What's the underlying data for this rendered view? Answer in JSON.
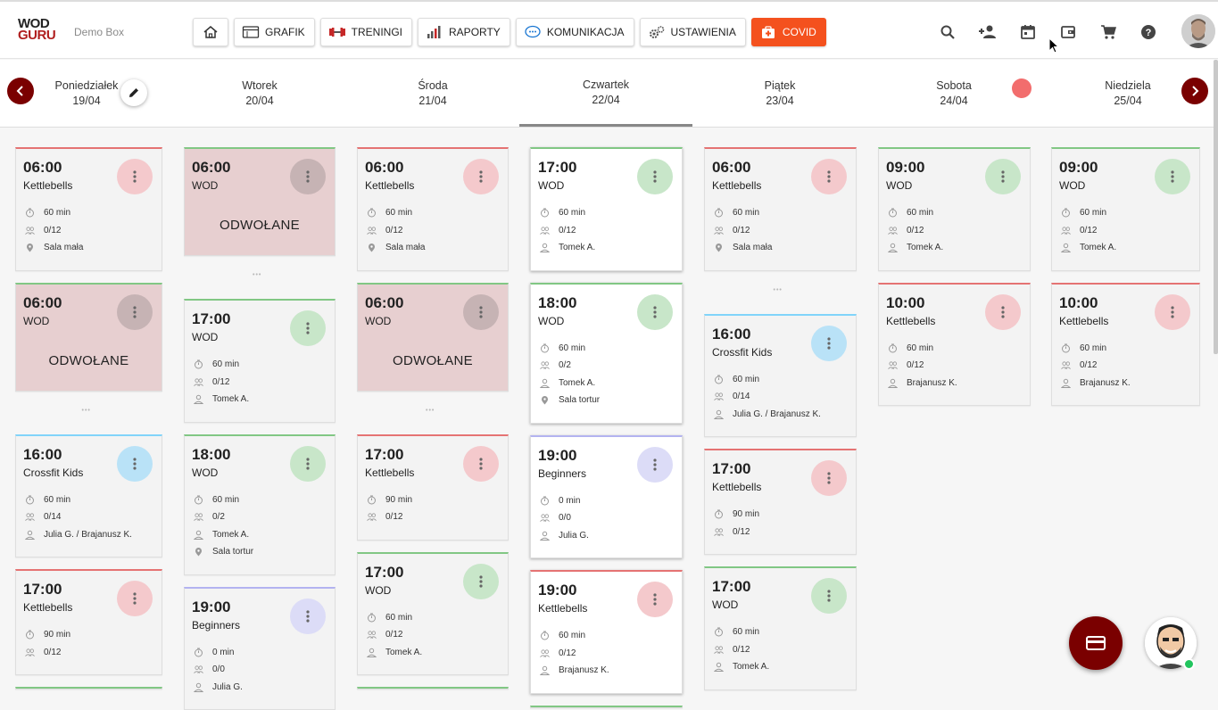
{
  "header": {
    "logo_line1": "WOD",
    "logo_line2": "GURU",
    "box_name": "Demo Box",
    "nav": [
      {
        "label": "GRAFIK",
        "icon": "calendar-board-icon"
      },
      {
        "label": "TRENINGI",
        "icon": "dumbbell-icon"
      },
      {
        "label": "RAPORTY",
        "icon": "bar-chart-icon"
      },
      {
        "label": "KOMUNIKACJA",
        "icon": "chat-icon"
      },
      {
        "label": "USTAWIENIA",
        "icon": "gears-icon"
      }
    ],
    "covid_label": "COVID",
    "icons": [
      "search-icon",
      "add-user-icon",
      "calendar-icon",
      "wallet-icon",
      "cart-icon",
      "help-icon"
    ]
  },
  "days": [
    {
      "name": "Poniedziałek",
      "date": "19/04"
    },
    {
      "name": "Wtorek",
      "date": "20/04"
    },
    {
      "name": "Środa",
      "date": "21/04"
    },
    {
      "name": "Czwartek",
      "date": "22/04",
      "active": true
    },
    {
      "name": "Piątek",
      "date": "23/04"
    },
    {
      "name": "Sobota",
      "date": "24/04"
    },
    {
      "name": "Niedziela",
      "date": "25/04"
    }
  ],
  "cancelled_label": "ODWOŁANE",
  "colors": {
    "red": "#e57373",
    "green": "#81c784",
    "blue": "#81d4fa",
    "purple": "#b3b3f0",
    "gray": "#9e9e9e",
    "accent": "#7a0000",
    "covid": "#f4511e"
  },
  "columns": [
    [
      {
        "time": "06:00",
        "name": "Kettlebells",
        "color": "red",
        "style": "gray",
        "rows": [
          [
            "clock",
            "60 min"
          ],
          [
            "people",
            "0/12"
          ],
          [
            "pin",
            "Sala mała"
          ]
        ]
      },
      {
        "time": "06:00",
        "name": "WOD",
        "color": "green",
        "style": "cancel",
        "cancelled": true
      },
      {
        "ellipsis": true
      },
      {
        "time": "16:00",
        "name": "Crossfit Kids",
        "color": "blue",
        "style": "gray",
        "rows": [
          [
            "clock",
            "60 min"
          ],
          [
            "people",
            "0/14"
          ],
          [
            "person",
            "Julia G. / Brajanusz K."
          ]
        ]
      },
      {
        "time": "17:00",
        "name": "Kettlebells",
        "color": "red",
        "style": "gray",
        "rows": [
          [
            "clock",
            "90 min"
          ],
          [
            "people",
            "0/12"
          ]
        ]
      },
      {
        "partial": true,
        "color": "green"
      }
    ],
    [
      {
        "time": "06:00",
        "name": "WOD",
        "color": "green",
        "style": "cancel",
        "cancelled": true
      },
      {
        "ellipsis": true
      },
      {
        "time": "17:00",
        "name": "WOD",
        "color": "green",
        "style": "gray",
        "rows": [
          [
            "clock",
            "60 min"
          ],
          [
            "people",
            "0/12"
          ],
          [
            "person",
            "Tomek A."
          ]
        ]
      },
      {
        "time": "18:00",
        "name": "WOD",
        "color": "green",
        "style": "gray",
        "rows": [
          [
            "clock",
            "60 min"
          ],
          [
            "people",
            "0/2"
          ],
          [
            "person",
            "Tomek A."
          ],
          [
            "pin",
            "Sala tortur"
          ]
        ]
      },
      {
        "time": "19:00",
        "name": "Beginners",
        "color": "purple",
        "style": "gray",
        "rows": [
          [
            "clock",
            "0 min"
          ],
          [
            "people",
            "0/0"
          ],
          [
            "person",
            "Julia G."
          ]
        ]
      }
    ],
    [
      {
        "time": "06:00",
        "name": "Kettlebells",
        "color": "red",
        "style": "gray",
        "rows": [
          [
            "clock",
            "60 min"
          ],
          [
            "people",
            "0/12"
          ],
          [
            "pin",
            "Sala mała"
          ]
        ]
      },
      {
        "time": "06:00",
        "name": "WOD",
        "color": "green",
        "style": "cancel",
        "cancelled": true
      },
      {
        "ellipsis": true
      },
      {
        "time": "17:00",
        "name": "Kettlebells",
        "color": "red",
        "style": "gray",
        "rows": [
          [
            "clock",
            "90 min"
          ],
          [
            "people",
            "0/12"
          ]
        ]
      },
      {
        "time": "17:00",
        "name": "WOD",
        "color": "green",
        "style": "gray",
        "rows": [
          [
            "clock",
            "60 min"
          ],
          [
            "people",
            "0/12"
          ],
          [
            "person",
            "Tomek A."
          ]
        ]
      },
      {
        "partial": true,
        "color": "green"
      }
    ],
    [
      {
        "time": "17:00",
        "name": "WOD",
        "color": "green",
        "style": "white",
        "rows": [
          [
            "clock",
            "60 min"
          ],
          [
            "people",
            "0/12"
          ],
          [
            "person",
            "Tomek A."
          ]
        ]
      },
      {
        "time": "18:00",
        "name": "WOD",
        "color": "green",
        "style": "white",
        "rows": [
          [
            "clock",
            "60 min"
          ],
          [
            "people",
            "0/2"
          ],
          [
            "person",
            "Tomek A."
          ],
          [
            "pin",
            "Sala tortur"
          ]
        ]
      },
      {
        "time": "19:00",
        "name": "Beginners",
        "color": "purple",
        "style": "white",
        "rows": [
          [
            "clock",
            "0 min"
          ],
          [
            "people",
            "0/0"
          ],
          [
            "person",
            "Julia G."
          ]
        ]
      },
      {
        "time": "19:00",
        "name": "Kettlebells",
        "color": "red",
        "style": "white",
        "rows": [
          [
            "clock",
            "60 min"
          ],
          [
            "people",
            "0/12"
          ],
          [
            "person",
            "Brajanusz K."
          ]
        ]
      },
      {
        "partial": true,
        "color": "green"
      }
    ],
    [
      {
        "time": "06:00",
        "name": "Kettlebells",
        "color": "red",
        "style": "gray",
        "rows": [
          [
            "clock",
            "60 min"
          ],
          [
            "people",
            "0/12"
          ],
          [
            "pin",
            "Sala mała"
          ]
        ]
      },
      {
        "ellipsis": true
      },
      {
        "time": "16:00",
        "name": "Crossfit Kids",
        "color": "blue",
        "style": "gray",
        "rows": [
          [
            "clock",
            "60 min"
          ],
          [
            "people",
            "0/14"
          ],
          [
            "person",
            "Julia G. / Brajanusz K."
          ]
        ]
      },
      {
        "time": "17:00",
        "name": "Kettlebells",
        "color": "red",
        "style": "gray",
        "rows": [
          [
            "clock",
            "90 min"
          ],
          [
            "people",
            "0/12"
          ]
        ]
      },
      {
        "time": "17:00",
        "name": "WOD",
        "color": "green",
        "style": "gray",
        "rows": [
          [
            "clock",
            "60 min"
          ],
          [
            "people",
            "0/12"
          ],
          [
            "person",
            "Tomek A."
          ]
        ]
      }
    ],
    [
      {
        "time": "09:00",
        "name": "WOD",
        "color": "green",
        "style": "gray",
        "rows": [
          [
            "clock",
            "60 min"
          ],
          [
            "people",
            "0/12"
          ],
          [
            "person",
            "Tomek A."
          ]
        ]
      },
      {
        "time": "10:00",
        "name": "Kettlebells",
        "color": "red",
        "style": "gray",
        "rows": [
          [
            "clock",
            "60 min"
          ],
          [
            "people",
            "0/12"
          ],
          [
            "person",
            "Brajanusz K."
          ]
        ]
      }
    ],
    [
      {
        "time": "09:00",
        "name": "WOD",
        "color": "green",
        "style": "gray",
        "rows": [
          [
            "clock",
            "60 min"
          ],
          [
            "people",
            "0/12"
          ],
          [
            "person",
            "Tomek A."
          ]
        ]
      },
      {
        "time": "10:00",
        "name": "Kettlebells",
        "color": "red",
        "style": "gray",
        "rows": [
          [
            "clock",
            "60 min"
          ],
          [
            "people",
            "0/12"
          ],
          [
            "person",
            "Brajanusz K."
          ]
        ]
      }
    ]
  ]
}
